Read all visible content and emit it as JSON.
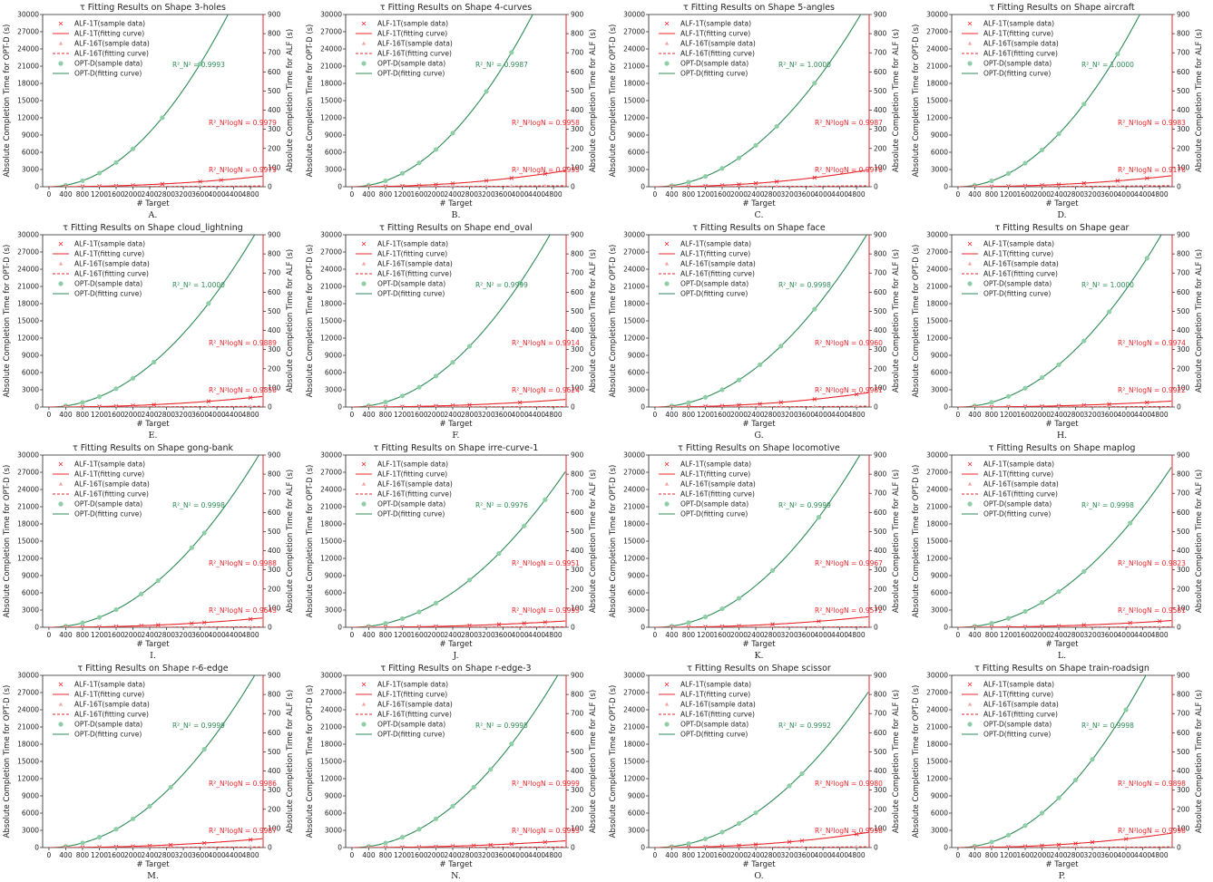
{
  "title_prefix": "τ Fitting Results on Shape ",
  "xlabel": "# Target",
  "ylabel_left": "Absolute Completion Time for OPT-D (s)",
  "ylabel_right": "Absolute Completion Time for ALF (s)",
  "legend": [
    "ALF-1T(sample data)",
    "ALF-1T(fitting curve)",
    "ALF-16T(sample data)",
    "ALF-16T(fitting curve)",
    "OPT-D(sample data)",
    "OPT-D(fitting curve)"
  ],
  "r2_labels": {
    "optd": "R²_N²",
    "alf1": "R²_N²logN",
    "alf16": "R²_N²logN"
  },
  "colors": {
    "alf": "#e8262b",
    "optd": "#2e8b57",
    "optd_points": "#8fcfa7"
  },
  "chart_data": [
    {
      "type": "line",
      "letter": "A.",
      "shape": "3-holes",
      "optd_k": 0.00165,
      "alf1_k": 2.5e-07,
      "alf16_k": 1.7e-08,
      "r2": {
        "optd": "0.9993",
        "alf1": "0.9979",
        "alf16": "0.9979"
      },
      "optd_pts": [
        400,
        800,
        1200,
        1600,
        2000,
        2700,
        3600
      ],
      "alf1_pts": [
        400,
        800,
        1200,
        1600,
        2000,
        2700,
        3600,
        4100
      ],
      "alf16_pts": [
        400,
        800,
        1200,
        1600,
        2000,
        2700,
        3600,
        4100
      ]
    },
    {
      "type": "line",
      "letter": "B.",
      "shape": "4-curves",
      "optd_k": 0.00162,
      "alf1_k": 3.8e-07,
      "alf16_k": 2.4e-08,
      "r2": {
        "optd": "0.9987",
        "alf1": "0.9958",
        "alf16": "0.9995"
      },
      "optd_pts": [
        400,
        800,
        1200,
        1600,
        2000,
        2400,
        3200,
        3800
      ],
      "alf1_pts": [
        400,
        800,
        1200,
        1600,
        2000,
        2400,
        3200,
        3800,
        4600
      ],
      "alf16_pts": [
        400,
        800,
        1200,
        1600,
        2000,
        2400,
        3200,
        3800,
        4600
      ]
    },
    {
      "type": "line",
      "letter": "C.",
      "shape": "5-angles",
      "optd_k": 0.00125,
      "alf1_k": 4e-07,
      "alf16_k": 2.2e-08,
      "r2": {
        "optd": "1.0000",
        "alf1": "0.9987",
        "alf16": "0.9976"
      },
      "optd_pts": [
        400,
        800,
        1200,
        1600,
        2000,
        2400,
        2900,
        3800
      ],
      "alf1_pts": [
        400,
        800,
        1200,
        1600,
        2000,
        2400,
        2900,
        3800
      ],
      "alf16_pts": [
        400,
        800,
        1200,
        1600,
        2000,
        2400,
        2900,
        3800
      ]
    },
    {
      "type": "line",
      "letter": "D.",
      "shape": "aircraft",
      "optd_k": 0.0016,
      "alf1_k": 2.6e-07,
      "alf16_k": 2.5e-08,
      "r2": {
        "optd": "1.0000",
        "alf1": "0.9983",
        "alf16": "0.9176"
      },
      "optd_pts": [
        400,
        800,
        1200,
        1600,
        2000,
        2400,
        3000,
        3800
      ],
      "alf1_pts": [
        400,
        800,
        1200,
        1600,
        2000,
        2400,
        3000,
        3800,
        4500
      ],
      "alf16_pts": [
        400,
        800,
        1200,
        1600,
        2000,
        2400,
        3000,
        3800,
        4500
      ]
    },
    {
      "type": "line",
      "letter": "E.",
      "shape": "cloud_lightning",
      "optd_k": 0.00125,
      "alf1_k": 2.5e-07,
      "alf16_k": 1.7e-08,
      "r2": {
        "optd": "1.0000",
        "alf1": "0.9889",
        "alf16": "0.9850"
      },
      "optd_pts": [
        400,
        800,
        1200,
        1600,
        2000,
        2500,
        3800
      ],
      "alf1_pts": [
        400,
        800,
        1200,
        1600,
        2000,
        2500,
        3800,
        4800
      ],
      "alf16_pts": [
        400,
        800,
        1200,
        1600,
        2000,
        2500,
        3800,
        4800
      ]
    },
    {
      "type": "line",
      "letter": "F.",
      "shape": "end_oval",
      "optd_k": 0.00135,
      "alf1_k": 1.8e-07,
      "alf16_k": 1e-08,
      "r2": {
        "optd": "0.9999",
        "alf1": "0.9914",
        "alf16": "0.9624"
      },
      "optd_pts": [
        400,
        800,
        1200,
        1600,
        2000,
        2400,
        2800,
        4000
      ],
      "alf1_pts": [
        400,
        800,
        1200,
        1600,
        2000,
        2400,
        2800,
        4000
      ],
      "alf16_pts": [
        400,
        800,
        1200,
        1600,
        2000,
        2400,
        2800,
        4000
      ]
    },
    {
      "type": "line",
      "letter": "G.",
      "shape": "face",
      "optd_k": 0.00118,
      "alf1_k": 3.4e-07,
      "alf16_k": 1.9e-08,
      "r2": {
        "optd": "0.9998",
        "alf1": "0.9960",
        "alf16": "0.9981"
      },
      "optd_pts": [
        400,
        800,
        1200,
        1600,
        2000,
        2500,
        3000,
        3800
      ],
      "alf1_pts": [
        400,
        800,
        1200,
        1600,
        2000,
        2500,
        3000,
        3800,
        4800
      ],
      "alf16_pts": [
        400,
        800,
        1200,
        1600,
        2000,
        2500,
        3000,
        3800,
        4800
      ]
    },
    {
      "type": "line",
      "letter": "H.",
      "shape": "gear",
      "optd_k": 0.00128,
      "alf1_k": 1.4e-07,
      "alf16_k": 1.2e-08,
      "r2": {
        "optd": "1.0000",
        "alf1": "0.9974",
        "alf16": "0.9922"
      },
      "optd_pts": [
        400,
        800,
        1200,
        1600,
        2000,
        2400,
        3000,
        3600,
        4500
      ],
      "alf1_pts": [
        400,
        800,
        1200,
        1600,
        2000,
        2400,
        3000,
        3600,
        4500
      ],
      "alf16_pts": [
        400,
        800,
        1200,
        1600,
        2000,
        2400,
        3000,
        3600,
        4500
      ]
    },
    {
      "type": "line",
      "letter": "I.",
      "shape": "gong-bank",
      "optd_k": 0.0012,
      "alf1_k": 2.2e-07,
      "alf16_k": 1e-08,
      "r2": {
        "optd": "0.9998",
        "alf1": "0.9988",
        "alf16": "0.9643"
      },
      "optd_pts": [
        400,
        800,
        1200,
        1600,
        2200,
        2600,
        3400,
        3700
      ],
      "alf1_pts": [
        400,
        800,
        1200,
        1600,
        2200,
        2600,
        3400,
        3700,
        4800
      ],
      "alf16_pts": [
        400,
        800,
        1200,
        1600,
        2200,
        2600,
        3400,
        3700,
        4800
      ]
    },
    {
      "type": "line",
      "letter": "J.",
      "shape": "irre-curve-1",
      "optd_k": 0.00105,
      "alf1_k": 1.5e-07,
      "alf16_k": 1e-08,
      "r2": {
        "optd": "0.9976",
        "alf1": "0.9951",
        "alf16": "0.9993"
      },
      "optd_pts": [
        400,
        800,
        1200,
        1600,
        2000,
        2800,
        3500,
        4100,
        4600
      ],
      "alf1_pts": [
        400,
        800,
        1200,
        1600,
        2000,
        2800,
        3500,
        4100,
        4600
      ],
      "alf16_pts": [
        400,
        800,
        1200,
        1600,
        2000,
        2800,
        3500,
        4100,
        4600
      ]
    },
    {
      "type": "line",
      "letter": "K.",
      "shape": "locomotive",
      "optd_k": 0.00126,
      "alf1_k": 2.5e-07,
      "alf16_k": 1.1e-08,
      "r2": {
        "optd": "0.9999",
        "alf1": "0.9967",
        "alf16": "0.9572"
      },
      "optd_pts": [
        400,
        800,
        1200,
        1600,
        2000,
        2800,
        3900
      ],
      "alf1_pts": [
        400,
        800,
        1200,
        1600,
        2000,
        2800,
        3900
      ],
      "alf16_pts": [
        400,
        800,
        1200,
        1600,
        2000,
        2800,
        3900
      ]
    },
    {
      "type": "line",
      "letter": "L.",
      "shape": "maplog",
      "optd_k": 0.00108,
      "alf1_k": 1.6e-07,
      "alf16_k": 1e-08,
      "r2": {
        "optd": "0.9998",
        "alf1": "0.9823",
        "alf16": "0.9581"
      },
      "optd_pts": [
        400,
        800,
        1200,
        1600,
        2000,
        2400,
        3000,
        4100
      ],
      "alf1_pts": [
        400,
        800,
        1200,
        1600,
        2000,
        2400,
        3000,
        4100,
        4800
      ],
      "alf16_pts": [
        400,
        800,
        1200,
        1600,
        2000,
        2400,
        3000,
        4100,
        4800
      ]
    },
    {
      "type": "line",
      "letter": "M.",
      "shape": "r-6-edge",
      "optd_k": 0.00125,
      "alf1_k": 2.1e-07,
      "alf16_k": 1.3e-08,
      "r2": {
        "optd": "0.9999",
        "alf1": "0.9986",
        "alf16": "0.9987"
      },
      "optd_pts": [
        400,
        800,
        1200,
        1600,
        2000,
        2400,
        2900,
        3700
      ],
      "alf1_pts": [
        400,
        800,
        1200,
        1600,
        2000,
        2400,
        2900,
        3700,
        4800
      ],
      "alf16_pts": [
        400,
        800,
        1200,
        1600,
        2000,
        2400,
        2900,
        3700,
        4800
      ]
    },
    {
      "type": "line",
      "letter": "N.",
      "shape": "r-edge-3",
      "optd_k": 0.00125,
      "alf1_k": 1.6e-07,
      "alf16_k": 1.3e-08,
      "r2": {
        "optd": "0.9995",
        "alf1": "0.9999",
        "alf16": "0.9993"
      },
      "optd_pts": [
        400,
        800,
        1200,
        1600,
        2000,
        2400,
        2900,
        3300,
        3800
      ],
      "alf1_pts": [
        400,
        800,
        1200,
        1600,
        2000,
        2400,
        2900,
        3300,
        3800,
        4600
      ],
      "alf16_pts": [
        400,
        800,
        1200,
        1600,
        2000,
        2400,
        2900,
        3300,
        3800,
        4600
      ]
    },
    {
      "type": "line",
      "letter": "O.",
      "shape": "scissor",
      "optd_k": 0.00105,
      "alf1_k": 3.6e-07,
      "alf16_k": 1.8e-08,
      "r2": {
        "optd": "0.9992",
        "alf1": "0.9980",
        "alf16": "0.9998"
      },
      "optd_pts": [
        400,
        800,
        1200,
        1600,
        2000,
        2400,
        3200,
        3500
      ],
      "alf1_pts": [
        400,
        800,
        1200,
        1600,
        2000,
        2400,
        3200,
        3500,
        4800
      ],
      "alf16_pts": [
        400,
        800,
        1200,
        1600,
        2000,
        2400,
        3200,
        3500,
        4800
      ]
    },
    {
      "type": "line",
      "letter": "P.",
      "shape": "train-roadsign",
      "optd_k": 0.0015,
      "alf1_k": 3.4e-07,
      "alf16_k": 1.5e-08,
      "r2": {
        "optd": "0.9998",
        "alf1": "0.9898",
        "alf16": "0.9998"
      },
      "optd_pts": [
        400,
        800,
        1200,
        1600,
        2000,
        2400,
        2800,
        3200,
        4000
      ],
      "alf1_pts": [
        400,
        800,
        1200,
        1600,
        2000,
        2400,
        2800,
        3200,
        4000
      ],
      "alf16_pts": [
        400,
        800,
        1200,
        1600,
        2000,
        2400,
        2800,
        3200,
        4000
      ]
    }
  ],
  "axes": {
    "x_ticks": [
      0,
      400,
      800,
      1200,
      1600,
      2000,
      2400,
      2800,
      3200,
      3600,
      4000,
      4400,
      4800
    ],
    "xlim": [
      -150,
      5100
    ],
    "left_ticks": [
      0,
      3000,
      6000,
      9000,
      12000,
      15000,
      18000,
      21000,
      24000,
      27000,
      30000
    ],
    "left_lim": [
      0,
      30000
    ],
    "right_ticks": [
      0,
      100,
      200,
      300,
      400,
      500,
      600,
      700,
      800,
      900
    ],
    "right_lim": [
      0,
      900
    ],
    "grid": false
  }
}
